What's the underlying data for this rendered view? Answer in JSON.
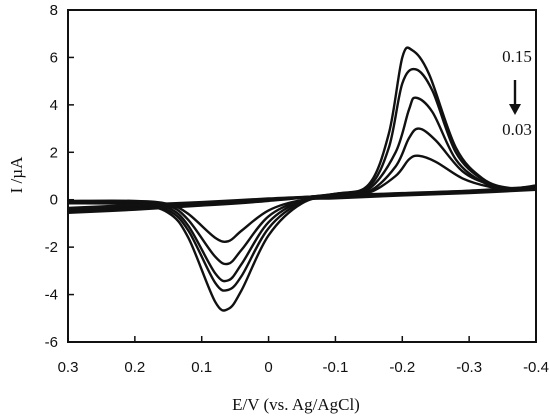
{
  "chart_data": {
    "type": "line",
    "title": "",
    "xlabel": "E/V (vs. Ag/AgCl)",
    "ylabel": "I /µA",
    "xlim": [
      0.3,
      -0.4
    ],
    "ylim": [
      -6,
      8
    ],
    "x_ticks": [
      "0.3",
      "0.2",
      "0.1",
      "0",
      "-0.1",
      "-0.2",
      "-0.3",
      "-0.4"
    ],
    "y_ticks": [
      "8",
      "6",
      "4",
      "2",
      "0",
      "-2",
      "-4",
      "-6"
    ],
    "grid": false,
    "legend": "none",
    "annotations": {
      "top_value": "0.15",
      "bottom_value": "0.03",
      "arrow": "down-arrow"
    },
    "series": [
      {
        "forward": [
          [
            0.3,
            -0.55
          ],
          [
            0.2,
            -0.42
          ],
          [
            0.1,
            -0.25
          ],
          [
            0,
            -0.05
          ],
          [
            -0.1,
            0.25
          ],
          [
            -0.15,
            0.65
          ],
          [
            -0.18,
            2.8
          ],
          [
            -0.2,
            6.0
          ],
          [
            -0.215,
            6.3
          ],
          [
            -0.24,
            5.3
          ],
          [
            -0.28,
            2.2
          ],
          [
            -0.32,
            0.9
          ],
          [
            -0.36,
            0.5
          ],
          [
            -0.4,
            0.6
          ]
        ],
        "reverse": [
          [
            -0.4,
            0.55
          ],
          [
            -0.3,
            0.38
          ],
          [
            -0.2,
            0.28
          ],
          [
            -0.1,
            0.15
          ],
          [
            -0.05,
            -0.15
          ],
          [
            0,
            -1.5
          ],
          [
            0.04,
            -3.8
          ],
          [
            0.06,
            -4.6
          ],
          [
            0.08,
            -4.3
          ],
          [
            0.12,
            -1.6
          ],
          [
            0.15,
            -0.55
          ],
          [
            0.2,
            -0.2
          ],
          [
            0.3,
            -0.15
          ]
        ]
      },
      {
        "forward": [
          [
            0.3,
            -0.5
          ],
          [
            0.2,
            -0.36
          ],
          [
            0.1,
            -0.2
          ],
          [
            0,
            -0.03
          ],
          [
            -0.1,
            0.25
          ],
          [
            -0.15,
            0.55
          ],
          [
            -0.18,
            2.2
          ],
          [
            -0.2,
            4.9
          ],
          [
            -0.22,
            5.5
          ],
          [
            -0.245,
            4.6
          ],
          [
            -0.28,
            2.0
          ],
          [
            -0.32,
            0.85
          ],
          [
            -0.36,
            0.45
          ],
          [
            -0.4,
            0.55
          ]
        ],
        "reverse": [
          [
            -0.4,
            0.5
          ],
          [
            -0.3,
            0.35
          ],
          [
            -0.2,
            0.25
          ],
          [
            -0.1,
            0.12
          ],
          [
            -0.05,
            -0.1
          ],
          [
            0,
            -1.2
          ],
          [
            0.04,
            -3.2
          ],
          [
            0.06,
            -3.8
          ],
          [
            0.08,
            -3.5
          ],
          [
            0.12,
            -1.3
          ],
          [
            0.15,
            -0.45
          ],
          [
            0.2,
            -0.18
          ],
          [
            0.3,
            -0.13
          ]
        ]
      },
      {
        "forward": [
          [
            0.3,
            -0.45
          ],
          [
            0.2,
            -0.3
          ],
          [
            0.1,
            -0.16
          ],
          [
            0,
            0.0
          ],
          [
            -0.1,
            0.22
          ],
          [
            -0.15,
            0.45
          ],
          [
            -0.19,
            2.0
          ],
          [
            -0.21,
            3.8
          ],
          [
            -0.22,
            4.3
          ],
          [
            -0.245,
            3.7
          ],
          [
            -0.28,
            1.7
          ],
          [
            -0.32,
            0.75
          ],
          [
            -0.36,
            0.45
          ],
          [
            -0.4,
            0.5
          ]
        ],
        "reverse": [
          [
            -0.4,
            0.48
          ],
          [
            -0.3,
            0.32
          ],
          [
            -0.2,
            0.22
          ],
          [
            -0.1,
            0.1
          ],
          [
            -0.05,
            -0.05
          ],
          [
            0,
            -0.95
          ],
          [
            0.04,
            -2.7
          ],
          [
            0.06,
            -3.4
          ],
          [
            0.08,
            -3.1
          ],
          [
            0.12,
            -1.1
          ],
          [
            0.15,
            -0.35
          ],
          [
            0.2,
            -0.12
          ],
          [
            0.3,
            -0.1
          ]
        ]
      },
      {
        "forward": [
          [
            0.3,
            -0.4
          ],
          [
            0.2,
            -0.26
          ],
          [
            0.1,
            -0.12
          ],
          [
            0,
            0.02
          ],
          [
            -0.1,
            0.2
          ],
          [
            -0.15,
            0.35
          ],
          [
            -0.19,
            1.4
          ],
          [
            -0.21,
            2.6
          ],
          [
            -0.225,
            3.0
          ],
          [
            -0.25,
            2.5
          ],
          [
            -0.29,
            1.2
          ],
          [
            -0.33,
            0.65
          ],
          [
            -0.37,
            0.45
          ],
          [
            -0.4,
            0.5
          ]
        ],
        "reverse": [
          [
            -0.4,
            0.45
          ],
          [
            -0.3,
            0.3
          ],
          [
            -0.2,
            0.2
          ],
          [
            -0.1,
            0.08
          ],
          [
            -0.05,
            -0.03
          ],
          [
            0,
            -0.7
          ],
          [
            0.04,
            -2.1
          ],
          [
            0.06,
            -2.7
          ],
          [
            0.08,
            -2.4
          ],
          [
            0.12,
            -0.85
          ],
          [
            0.15,
            -0.25
          ],
          [
            0.2,
            -0.08
          ],
          [
            0.3,
            -0.07
          ]
        ]
      },
      {
        "forward": [
          [
            0.3,
            -0.35
          ],
          [
            0.2,
            -0.22
          ],
          [
            0.1,
            -0.1
          ],
          [
            0,
            0.05
          ],
          [
            -0.1,
            0.18
          ],
          [
            -0.15,
            0.3
          ],
          [
            -0.19,
            1.0
          ],
          [
            -0.21,
            1.7
          ],
          [
            -0.225,
            1.85
          ],
          [
            -0.25,
            1.6
          ],
          [
            -0.29,
            0.9
          ],
          [
            -0.33,
            0.55
          ],
          [
            -0.37,
            0.42
          ],
          [
            -0.4,
            0.45
          ]
        ],
        "reverse": [
          [
            -0.4,
            0.42
          ],
          [
            -0.3,
            0.28
          ],
          [
            -0.2,
            0.18
          ],
          [
            -0.1,
            0.06
          ],
          [
            -0.05,
            -0.01
          ],
          [
            0,
            -0.45
          ],
          [
            0.04,
            -1.3
          ],
          [
            0.06,
            -1.75
          ],
          [
            0.08,
            -1.6
          ],
          [
            0.12,
            -0.6
          ],
          [
            0.15,
            -0.18
          ],
          [
            0.2,
            -0.05
          ],
          [
            0.3,
            -0.05
          ]
        ]
      }
    ]
  }
}
